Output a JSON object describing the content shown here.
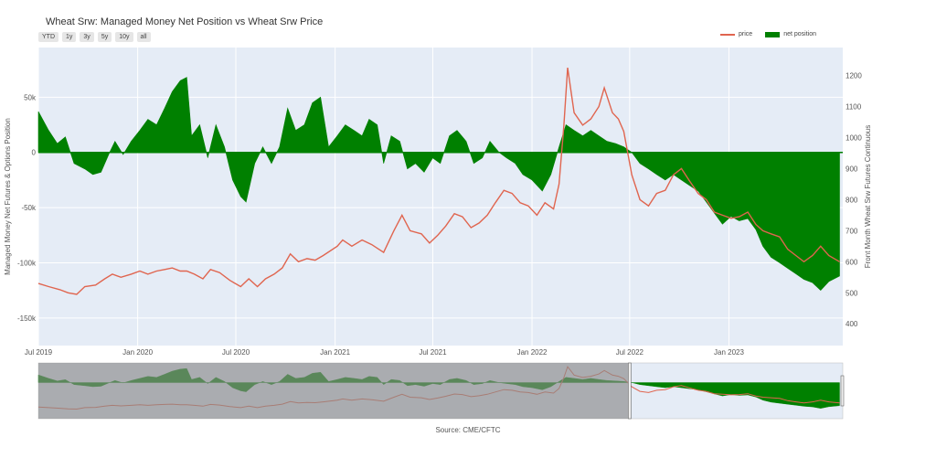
{
  "title": "Wheat Srw: Managed Money Net Position vs Wheat Srw Price",
  "range_buttons": [
    "YTD",
    "1y",
    "3y",
    "5y",
    "10y",
    "all"
  ],
  "legend": {
    "price": "price",
    "net": "net position"
  },
  "source": "Source: CME/CFTC",
  "colors": {
    "price": "#e0654f",
    "net": "#008000",
    "plot_bg": "#e5ecf6",
    "mask": "#8a8a8a"
  },
  "chart_data": {
    "type": "area",
    "title": "Wheat Srw: Managed Money Net Position vs Wheat Srw Price",
    "xlim": [
      "2019-07-01",
      "2023-07-31"
    ],
    "x_ticks": [
      {
        "date": "2019-07-01",
        "label": "Jul 2019"
      },
      {
        "date": "2020-01-01",
        "label": "Jan 2020"
      },
      {
        "date": "2020-07-01",
        "label": "Jul 2020"
      },
      {
        "date": "2021-01-01",
        "label": "Jan 2021"
      },
      {
        "date": "2021-07-01",
        "label": "Jul 2021"
      },
      {
        "date": "2022-01-01",
        "label": "Jan 2022"
      },
      {
        "date": "2022-07-01",
        "label": "Jul 2022"
      },
      {
        "date": "2023-01-01",
        "label": "Jan 2023"
      }
    ],
    "y_left": {
      "label": "Managed Money Net Futures & Options Position",
      "range": [
        -175000,
        95000
      ],
      "ticks": [
        {
          "value": 50000,
          "label": "50k"
        },
        {
          "value": 0,
          "label": "0"
        },
        {
          "value": -50000,
          "label": "-50k"
        },
        {
          "value": -100000,
          "label": "-100k"
        },
        {
          "value": -150000,
          "label": "-150k"
        }
      ]
    },
    "y_right": {
      "label": "Front Month Wheat Srw Futures Continuous",
      "range": [
        330,
        1290
      ],
      "ticks": [
        400,
        500,
        600,
        700,
        800,
        900,
        1000,
        1100,
        1200
      ]
    },
    "series": [
      {
        "name": "net position",
        "axis": "left",
        "points": [
          [
            "2019-07-01",
            37000
          ],
          [
            "2019-07-20",
            20000
          ],
          [
            "2019-08-05",
            8000
          ],
          [
            "2019-08-20",
            14000
          ],
          [
            "2019-09-05",
            -10000
          ],
          [
            "2019-09-25",
            -15000
          ],
          [
            "2019-10-10",
            -20000
          ],
          [
            "2019-10-25",
            -18000
          ],
          [
            "2019-11-10",
            0
          ],
          [
            "2019-11-20",
            10000
          ],
          [
            "2019-12-05",
            -2000
          ],
          [
            "2019-12-20",
            10000
          ],
          [
            "2020-01-05",
            20000
          ],
          [
            "2020-01-20",
            30000
          ],
          [
            "2020-02-05",
            25000
          ],
          [
            "2020-02-20",
            40000
          ],
          [
            "2020-03-05",
            55000
          ],
          [
            "2020-03-20",
            65000
          ],
          [
            "2020-04-01",
            68000
          ],
          [
            "2020-04-10",
            15000
          ],
          [
            "2020-04-25",
            25000
          ],
          [
            "2020-05-10",
            -5000
          ],
          [
            "2020-05-25",
            25000
          ],
          [
            "2020-06-10",
            5000
          ],
          [
            "2020-06-25",
            -25000
          ],
          [
            "2020-07-10",
            -40000
          ],
          [
            "2020-07-20",
            -45000
          ],
          [
            "2020-08-05",
            -10000
          ],
          [
            "2020-08-20",
            5000
          ],
          [
            "2020-09-05",
            -10000
          ],
          [
            "2020-09-20",
            5000
          ],
          [
            "2020-10-05",
            40000
          ],
          [
            "2020-10-20",
            20000
          ],
          [
            "2020-11-05",
            25000
          ],
          [
            "2020-11-20",
            45000
          ],
          [
            "2020-12-05",
            50000
          ],
          [
            "2020-12-20",
            5000
          ],
          [
            "2021-01-05",
            15000
          ],
          [
            "2021-01-20",
            25000
          ],
          [
            "2021-02-05",
            20000
          ],
          [
            "2021-02-20",
            15000
          ],
          [
            "2021-03-05",
            30000
          ],
          [
            "2021-03-20",
            25000
          ],
          [
            "2021-04-01",
            -10000
          ],
          [
            "2021-04-15",
            15000
          ],
          [
            "2021-05-01",
            10000
          ],
          [
            "2021-05-15",
            -15000
          ],
          [
            "2021-05-30",
            -10000
          ],
          [
            "2021-06-15",
            -18000
          ],
          [
            "2021-07-01",
            -5000
          ],
          [
            "2021-07-15",
            -10000
          ],
          [
            "2021-08-01",
            15000
          ],
          [
            "2021-08-15",
            20000
          ],
          [
            "2021-09-01",
            10000
          ],
          [
            "2021-09-15",
            -10000
          ],
          [
            "2021-10-01",
            -5000
          ],
          [
            "2021-10-15",
            10000
          ],
          [
            "2021-11-01",
            0
          ],
          [
            "2021-11-15",
            -5000
          ],
          [
            "2021-12-01",
            -10000
          ],
          [
            "2021-12-15",
            -20000
          ],
          [
            "2022-01-01",
            -25000
          ],
          [
            "2022-01-20",
            -35000
          ],
          [
            "2022-02-05",
            -20000
          ],
          [
            "2022-02-20",
            5000
          ],
          [
            "2022-03-05",
            25000
          ],
          [
            "2022-03-20",
            20000
          ],
          [
            "2022-04-05",
            15000
          ],
          [
            "2022-04-20",
            20000
          ],
          [
            "2022-05-05",
            15000
          ],
          [
            "2022-05-20",
            10000
          ],
          [
            "2022-06-05",
            8000
          ],
          [
            "2022-06-20",
            5000
          ],
          [
            "2022-07-05",
            0
          ],
          [
            "2022-07-20",
            -10000
          ],
          [
            "2022-08-05",
            -15000
          ],
          [
            "2022-08-20",
            -20000
          ],
          [
            "2022-09-05",
            -25000
          ],
          [
            "2022-09-20",
            -20000
          ],
          [
            "2022-10-05",
            -25000
          ],
          [
            "2022-10-20",
            -30000
          ],
          [
            "2022-11-05",
            -35000
          ],
          [
            "2022-11-20",
            -45000
          ],
          [
            "2022-12-05",
            -55000
          ],
          [
            "2022-12-20",
            -65000
          ],
          [
            "2023-01-05",
            -58000
          ],
          [
            "2023-01-20",
            -62000
          ],
          [
            "2023-02-05",
            -60000
          ],
          [
            "2023-02-20",
            -70000
          ],
          [
            "2023-03-05",
            -85000
          ],
          [
            "2023-03-20",
            -95000
          ],
          [
            "2023-04-05",
            -100000
          ],
          [
            "2023-04-20",
            -105000
          ],
          [
            "2023-05-05",
            -110000
          ],
          [
            "2023-05-20",
            -115000
          ],
          [
            "2023-06-05",
            -118000
          ],
          [
            "2023-06-20",
            -125000
          ],
          [
            "2023-07-05",
            -117000
          ],
          [
            "2023-07-25",
            -112000
          ]
        ]
      },
      {
        "name": "price",
        "axis": "right",
        "points": [
          [
            "2019-07-01",
            530
          ],
          [
            "2019-07-20",
            520
          ],
          [
            "2019-08-10",
            510
          ],
          [
            "2019-08-25",
            500
          ],
          [
            "2019-09-10",
            495
          ],
          [
            "2019-09-25",
            520
          ],
          [
            "2019-10-15",
            525
          ],
          [
            "2019-11-01",
            545
          ],
          [
            "2019-11-15",
            560
          ],
          [
            "2019-12-01",
            550
          ],
          [
            "2019-12-20",
            560
          ],
          [
            "2020-01-05",
            570
          ],
          [
            "2020-01-20",
            560
          ],
          [
            "2020-02-05",
            570
          ],
          [
            "2020-02-20",
            575
          ],
          [
            "2020-03-05",
            580
          ],
          [
            "2020-03-20",
            570
          ],
          [
            "2020-04-01",
            570
          ],
          [
            "2020-04-15",
            560
          ],
          [
            "2020-05-01",
            545
          ],
          [
            "2020-05-15",
            575
          ],
          [
            "2020-06-01",
            565
          ],
          [
            "2020-06-20",
            540
          ],
          [
            "2020-07-10",
            520
          ],
          [
            "2020-07-25",
            545
          ],
          [
            "2020-08-10",
            520
          ],
          [
            "2020-08-25",
            545
          ],
          [
            "2020-09-10",
            560
          ],
          [
            "2020-09-25",
            580
          ],
          [
            "2020-10-10",
            625
          ],
          [
            "2020-10-25",
            600
          ],
          [
            "2020-11-10",
            610
          ],
          [
            "2020-11-25",
            605
          ],
          [
            "2020-12-10",
            620
          ],
          [
            "2021-01-05",
            650
          ],
          [
            "2021-01-15",
            670
          ],
          [
            "2021-02-01",
            650
          ],
          [
            "2021-02-20",
            670
          ],
          [
            "2021-03-10",
            655
          ],
          [
            "2021-04-01",
            630
          ],
          [
            "2021-04-20",
            700
          ],
          [
            "2021-05-05",
            750
          ],
          [
            "2021-05-20",
            700
          ],
          [
            "2021-06-10",
            690
          ],
          [
            "2021-06-25",
            660
          ],
          [
            "2021-07-10",
            685
          ],
          [
            "2021-07-25",
            715
          ],
          [
            "2021-08-10",
            755
          ],
          [
            "2021-08-25",
            745
          ],
          [
            "2021-09-10",
            710
          ],
          [
            "2021-09-25",
            725
          ],
          [
            "2021-10-10",
            750
          ],
          [
            "2021-10-25",
            790
          ],
          [
            "2021-11-10",
            830
          ],
          [
            "2021-11-25",
            820
          ],
          [
            "2021-12-10",
            790
          ],
          [
            "2021-12-25",
            780
          ],
          [
            "2022-01-10",
            750
          ],
          [
            "2022-01-25",
            790
          ],
          [
            "2022-02-10",
            770
          ],
          [
            "2022-02-20",
            850
          ],
          [
            "2022-03-01",
            1040
          ],
          [
            "2022-03-08",
            1225
          ],
          [
            "2022-03-20",
            1080
          ],
          [
            "2022-04-05",
            1040
          ],
          [
            "2022-04-20",
            1060
          ],
          [
            "2022-05-05",
            1100
          ],
          [
            "2022-05-15",
            1160
          ],
          [
            "2022-05-30",
            1080
          ],
          [
            "2022-06-10",
            1060
          ],
          [
            "2022-06-20",
            1020
          ],
          [
            "2022-07-05",
            880
          ],
          [
            "2022-07-20",
            800
          ],
          [
            "2022-08-05",
            780
          ],
          [
            "2022-08-20",
            820
          ],
          [
            "2022-09-05",
            830
          ],
          [
            "2022-09-20",
            880
          ],
          [
            "2022-10-05",
            900
          ],
          [
            "2022-10-20",
            860
          ],
          [
            "2022-11-05",
            820
          ],
          [
            "2022-11-20",
            800
          ],
          [
            "2022-12-05",
            760
          ],
          [
            "2022-12-20",
            750
          ],
          [
            "2023-01-05",
            740
          ],
          [
            "2023-01-20",
            745
          ],
          [
            "2023-02-05",
            760
          ],
          [
            "2023-02-20",
            720
          ],
          [
            "2023-03-05",
            700
          ],
          [
            "2023-03-20",
            690
          ],
          [
            "2023-04-05",
            680
          ],
          [
            "2023-04-20",
            640
          ],
          [
            "2023-05-05",
            620
          ],
          [
            "2023-05-20",
            600
          ],
          [
            "2023-06-05",
            620
          ],
          [
            "2023-06-20",
            650
          ],
          [
            "2023-07-05",
            620
          ],
          [
            "2023-07-25",
            600
          ]
        ]
      }
    ],
    "grid": true,
    "legend_position": "top-right",
    "range_selector": {
      "start": "2019-07-01",
      "end": "2022-07-01"
    }
  }
}
